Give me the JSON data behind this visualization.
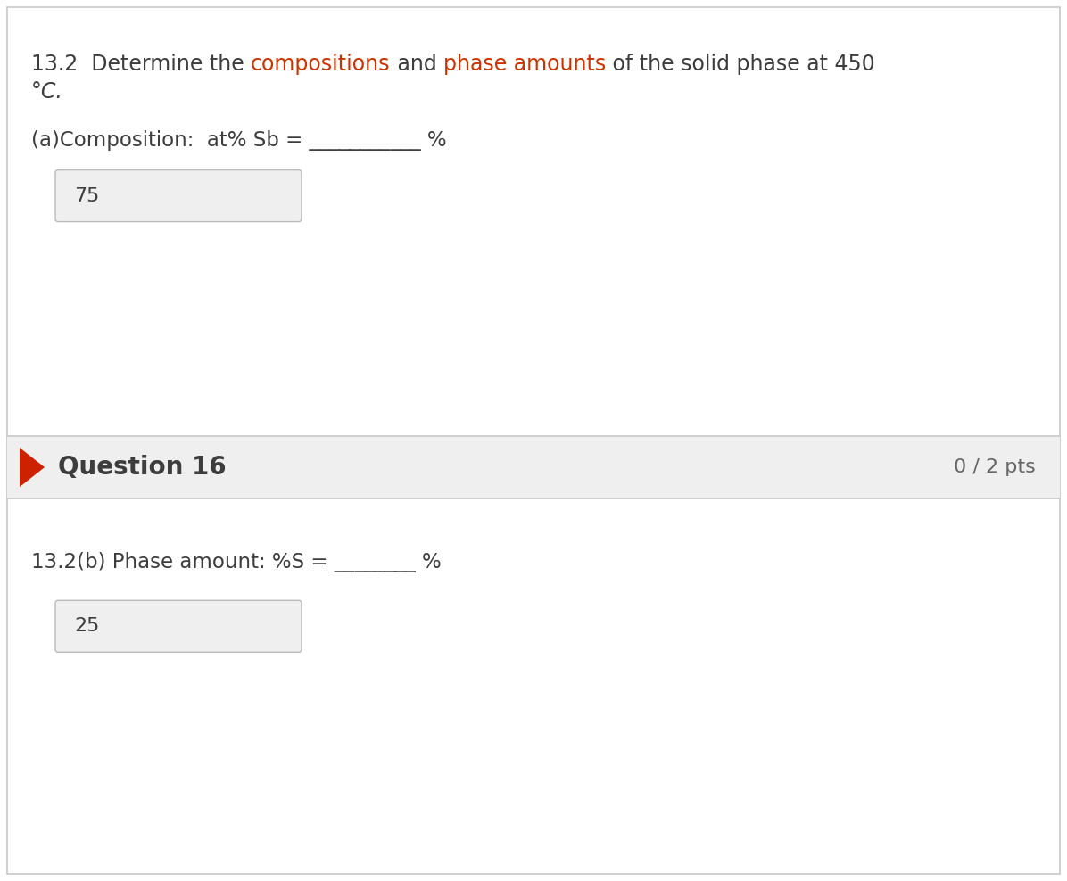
{
  "bg_color": "#ffffff",
  "border_color": "#c8c8c8",
  "title_parts": [
    {
      "text": "13.2  Determine the ",
      "color": "#3d3d3d"
    },
    {
      "text": "compositions",
      "color": "#cc3300"
    },
    {
      "text": " and ",
      "color": "#3d3d3d"
    },
    {
      "text": "phase amounts",
      "color": "#cc3300"
    },
    {
      "text": " of the solid phase at 450",
      "color": "#3d3d3d"
    }
  ],
  "title_line2": "°C.",
  "q15_label_parts": [
    {
      "text": "(a)Composition:  at% Sb = ",
      "color": "#3d3d3d"
    },
    {
      "text": "___________ ",
      "color": "#3d3d3d"
    },
    {
      "text": "%",
      "color": "#3d3d3d"
    }
  ],
  "q15_answer": "75",
  "answer_box_color": "#efefef",
  "answer_box_border": "#bbbbbb",
  "divider_color": "#c8c8c8",
  "q16_header_bg": "#efefef",
  "q16_text": "Question 16",
  "q16_pts": "0 / 2 pts",
  "arrow_color": "#cc2200",
  "q16_label": "13.2(b) Phase amount: %S = ________ %",
  "q16_answer": "25",
  "text_color": "#3d3d3d",
  "pts_color": "#666666",
  "fig_width": 11.96,
  "fig_height": 9.88,
  "dpi": 100
}
